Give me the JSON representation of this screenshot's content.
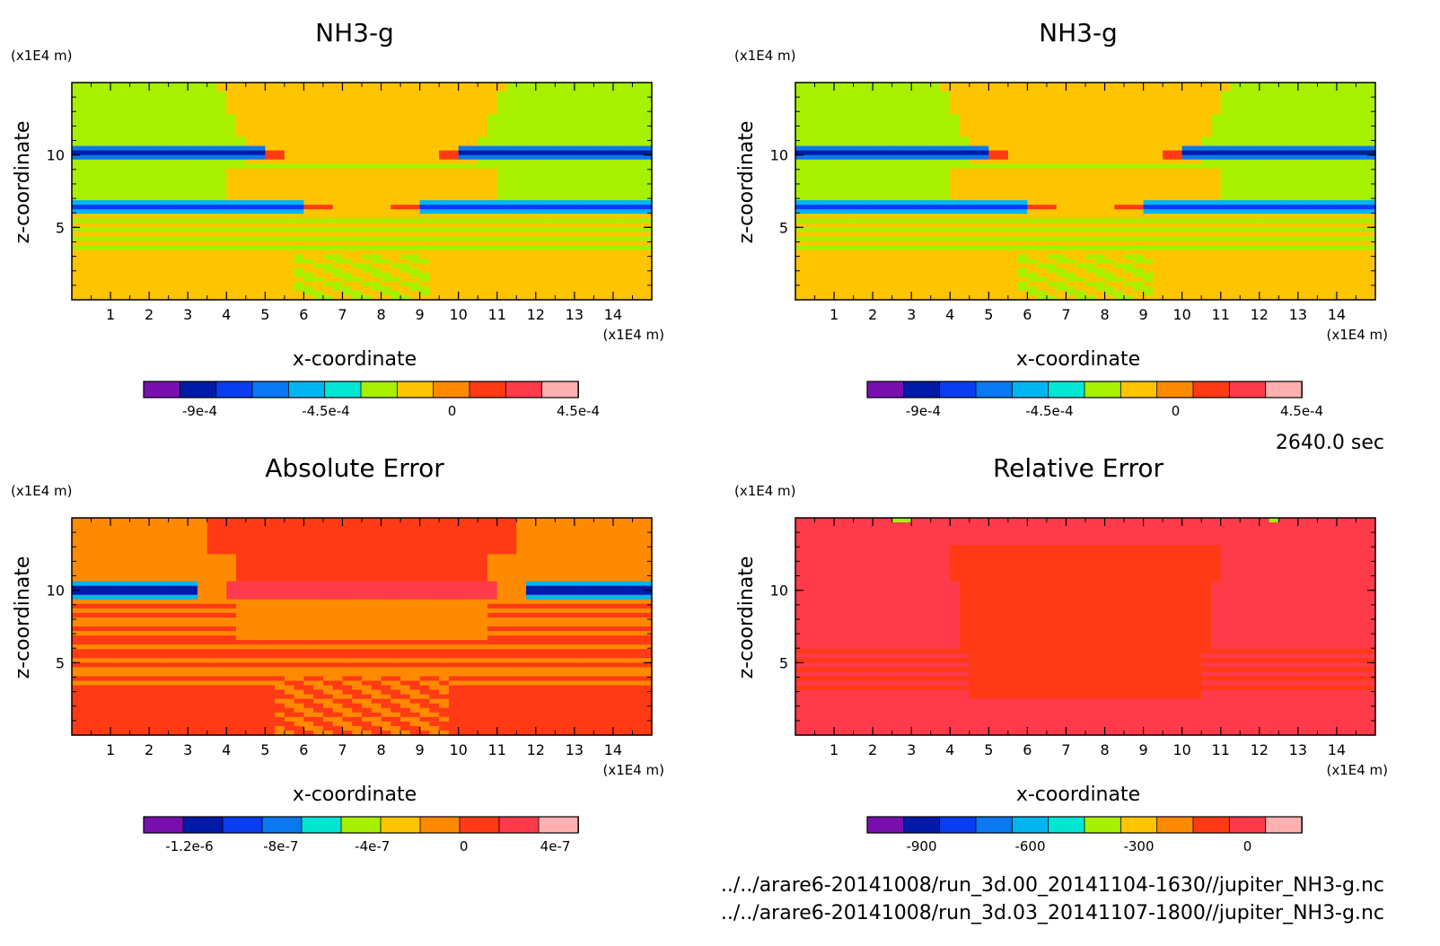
{
  "time_label": "2640.0 sec",
  "files": [
    "../../arare6-20141008/run_3d.00_20141104-1630//jupiter_NH3-g.nc",
    "../../arare6-20141008/run_3d.03_20141107-1800//jupiter_NH3-g.nc"
  ],
  "colors": {
    "ramp": [
      "#7a0fb0",
      "#001aa8",
      "#0a3cf0",
      "#0a78f0",
      "#00b4f0",
      "#00e6d2",
      "#a6f000",
      "#ffc400",
      "#ff8a00",
      "#ff3a14",
      "#ff3a4a",
      "#ffb0b0"
    ]
  },
  "chart_data": [
    {
      "type": "heatmap",
      "title": "NH3-g",
      "xlabel": "x-coordinate",
      "ylabel": "z-coordinate",
      "x_unit": "(x1E4 m)",
      "y_unit": "(x1E4 m)",
      "xlim": [
        0,
        15
      ],
      "ylim": [
        0,
        15
      ],
      "x_ticks": [
        "1",
        "2",
        "3",
        "4",
        "5",
        "6",
        "7",
        "8",
        "9",
        "10",
        "11",
        "12",
        "13",
        "14"
      ],
      "y_ticks": [
        "5",
        "10"
      ],
      "colorbar": {
        "levels": 12,
        "ticks": [
          {
            "value": -0.0009,
            "label": "-9e-4"
          },
          {
            "value": -0.00045,
            "label": "-4.5e-4"
          },
          {
            "value": 0,
            "label": "0"
          },
          {
            "value": 0.00045,
            "label": "4.5e-4"
          }
        ],
        "range": [
          -0.0011,
          0.00045
        ]
      },
      "pattern": "field"
    },
    {
      "type": "heatmap",
      "title": "NH3-g",
      "xlabel": "x-coordinate",
      "ylabel": "z-coordinate",
      "x_unit": "(x1E4 m)",
      "y_unit": "(x1E4 m)",
      "xlim": [
        0,
        15
      ],
      "ylim": [
        0,
        15
      ],
      "x_ticks": [
        "1",
        "2",
        "3",
        "4",
        "5",
        "6",
        "7",
        "8",
        "9",
        "10",
        "11",
        "12",
        "13",
        "14"
      ],
      "y_ticks": [
        "5",
        "10"
      ],
      "colorbar": {
        "levels": 12,
        "ticks": [
          {
            "value": -0.0009,
            "label": "-9e-4"
          },
          {
            "value": -0.00045,
            "label": "-4.5e-4"
          },
          {
            "value": 0,
            "label": "0"
          },
          {
            "value": 0.00045,
            "label": "4.5e-4"
          }
        ],
        "range": [
          -0.0011,
          0.00045
        ]
      },
      "pattern": "field"
    },
    {
      "type": "heatmap",
      "title": "Absolute Error",
      "xlabel": "x-coordinate",
      "ylabel": "z-coordinate",
      "x_unit": "(x1E4 m)",
      "y_unit": "(x1E4 m)",
      "xlim": [
        0,
        15
      ],
      "ylim": [
        0,
        15
      ],
      "x_ticks": [
        "1",
        "2",
        "3",
        "4",
        "5",
        "6",
        "7",
        "8",
        "9",
        "10",
        "11",
        "12",
        "13",
        "14"
      ],
      "y_ticks": [
        "5",
        "10"
      ],
      "colorbar": {
        "levels": 11,
        "ticks": [
          {
            "value": -1.2e-06,
            "label": "-1.2e-6"
          },
          {
            "value": -8e-07,
            "label": "-8e-7"
          },
          {
            "value": -4e-07,
            "label": "-4e-7"
          },
          {
            "value": 0,
            "label": "0"
          },
          {
            "value": 4e-07,
            "label": "4e-7"
          }
        ],
        "range": [
          -1.4e-06,
          5e-07
        ]
      },
      "pattern": "abs"
    },
    {
      "type": "heatmap",
      "title": "Relative Error",
      "xlabel": "x-coordinate",
      "ylabel": "z-coordinate",
      "x_unit": "(x1E4 m)",
      "y_unit": "(x1E4 m)",
      "xlim": [
        0,
        15
      ],
      "ylim": [
        0,
        15
      ],
      "x_ticks": [
        "1",
        "2",
        "3",
        "4",
        "5",
        "6",
        "7",
        "8",
        "9",
        "10",
        "11",
        "12",
        "13",
        "14"
      ],
      "y_ticks": [
        "5",
        "10"
      ],
      "colorbar": {
        "levels": 12,
        "ticks": [
          {
            "value": -900,
            "label": "-900"
          },
          {
            "value": -600,
            "label": "-600"
          },
          {
            "value": -300,
            "label": "-300"
          },
          {
            "value": 0,
            "label": "0"
          }
        ],
        "range": [
          -1050,
          150
        ]
      },
      "pattern": "rel"
    }
  ]
}
